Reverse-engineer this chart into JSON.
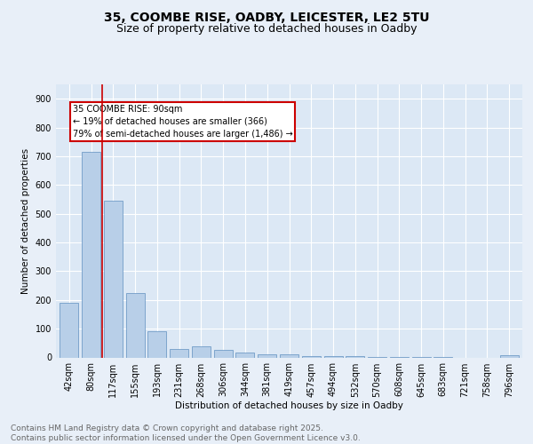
{
  "title_line1": "35, COOMBE RISE, OADBY, LEICESTER, LE2 5TU",
  "title_line2": "Size of property relative to detached houses in Oadby",
  "xlabel": "Distribution of detached houses by size in Oadby",
  "ylabel": "Number of detached properties",
  "bar_labels": [
    "42sqm",
    "80sqm",
    "117sqm",
    "155sqm",
    "193sqm",
    "231sqm",
    "268sqm",
    "306sqm",
    "344sqm",
    "381sqm",
    "419sqm",
    "457sqm",
    "494sqm",
    "532sqm",
    "570sqm",
    "608sqm",
    "645sqm",
    "683sqm",
    "721sqm",
    "758sqm",
    "796sqm"
  ],
  "bar_values": [
    190,
    715,
    545,
    225,
    92,
    28,
    38,
    25,
    17,
    12,
    12,
    6,
    5,
    4,
    3,
    2,
    1,
    1,
    0,
    0,
    8
  ],
  "bar_color": "#b8cfe8",
  "bar_edge_color": "#6090c0",
  "vline_color": "#cc0000",
  "annotation_text": "35 COOMBE RISE: 90sqm\n← 19% of detached houses are smaller (366)\n79% of semi-detached houses are larger (1,486) →",
  "annotation_box_color": "#cc0000",
  "ylim": [
    0,
    950
  ],
  "yticks": [
    0,
    100,
    200,
    300,
    400,
    500,
    600,
    700,
    800,
    900
  ],
  "bg_color": "#e8eff8",
  "plot_bg_color": "#dce8f5",
  "footer_text": "Contains HM Land Registry data © Crown copyright and database right 2025.\nContains public sector information licensed under the Open Government Licence v3.0.",
  "title_fontsize": 10,
  "subtitle_fontsize": 9,
  "label_fontsize": 7.5,
  "tick_fontsize": 7,
  "footer_fontsize": 6.5,
  "annot_fontsize": 7
}
